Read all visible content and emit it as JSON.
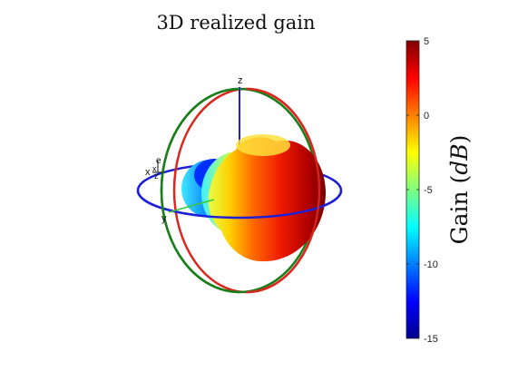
{
  "chart_data": {
    "type": "3d-radiation-pattern",
    "title": "3D realized gain",
    "colorbar": {
      "label_prefix": "Gain (",
      "label_unit": "dB",
      "label_suffix": ")",
      "range": [
        -15,
        5
      ],
      "ticks": [
        5,
        0,
        -5,
        -10,
        -15
      ],
      "tick_labels": [
        "5",
        "0",
        "-5",
        "-10",
        "-15"
      ],
      "colormap": "jet"
    },
    "axes": {
      "x": "x",
      "y": "y",
      "z": "z"
    },
    "orientation_marks": [
      "e",
      "x",
      "z"
    ],
    "cut_circles": [
      {
        "plane": "azimuth",
        "color": "#1f1fd6"
      },
      {
        "plane": "elevation-1",
        "color": "#d9281f"
      },
      {
        "plane": "elevation-2",
        "color": "#1a7f1a"
      }
    ]
  }
}
